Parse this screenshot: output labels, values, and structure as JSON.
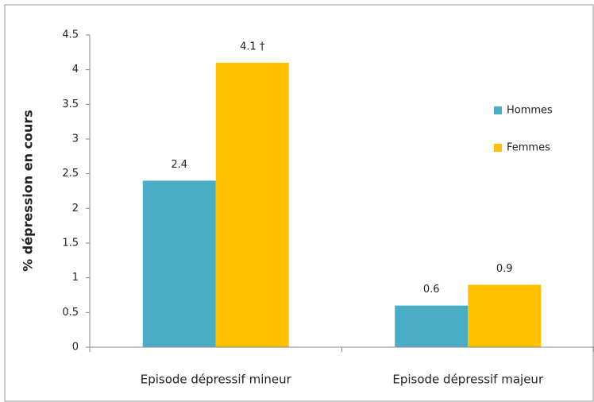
{
  "chart_data": {
    "type": "bar",
    "y_label": "% dépression en cours",
    "categories": [
      "Episode dépressif mineur",
      "Episode dépressif majeur"
    ],
    "series": [
      {
        "name": "Hommes",
        "color": "#4bacc6",
        "values": [
          2.4,
          0.6
        ]
      },
      {
        "name": "Femmes",
        "color": "#ffc000",
        "values": [
          4.1,
          0.9
        ],
        "value_labels": [
          "4.1 †",
          "0.9"
        ]
      }
    ],
    "ylim": [
      0,
      4.5
    ],
    "yticks": [
      0,
      0.5,
      1,
      1.5,
      2,
      2.5,
      3,
      3.5,
      4,
      4.5
    ],
    "legend": "right"
  }
}
